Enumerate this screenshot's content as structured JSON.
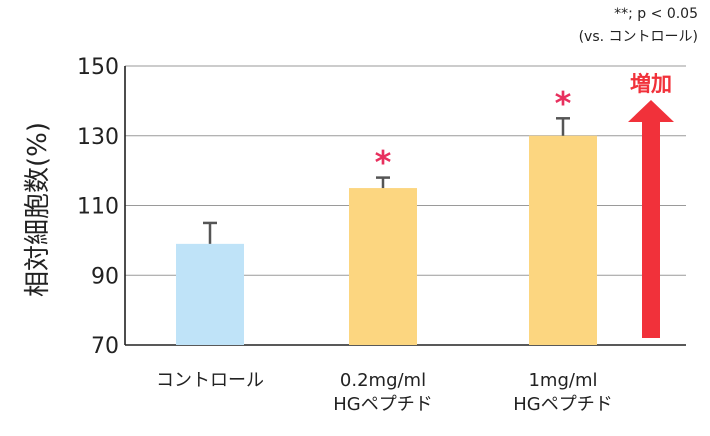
{
  "note": {
    "line1": "**; p < 0.05",
    "line2": "(vs. コントロール)"
  },
  "chart_data": {
    "type": "bar",
    "title": "",
    "ylabel": "相対細胞数(%)",
    "xlabel": "",
    "ylim": [
      70,
      150
    ],
    "yticks": [
      70,
      90,
      110,
      130,
      150
    ],
    "grid": true,
    "categories": [
      [
        "コントロール"
      ],
      [
        "0.2mg/ml",
        "HGペプチド"
      ],
      [
        "1mg/ml",
        "HGペプチド"
      ]
    ],
    "values": [
      99,
      115,
      130
    ],
    "errors": [
      6,
      3,
      5
    ],
    "significance": [
      "",
      "*",
      "*"
    ],
    "colors": {
      "control": "#bfe3f8",
      "treated": "#fcd680",
      "star": "#e8305e",
      "arrow": "#f1313a",
      "errorbar": "#555555",
      "grid": "#9a9a9a"
    },
    "bar_colors": [
      "#bfe3f8",
      "#fcd680",
      "#fcd680"
    ],
    "annotation": {
      "label": "増加",
      "icon": "up-arrow"
    }
  }
}
